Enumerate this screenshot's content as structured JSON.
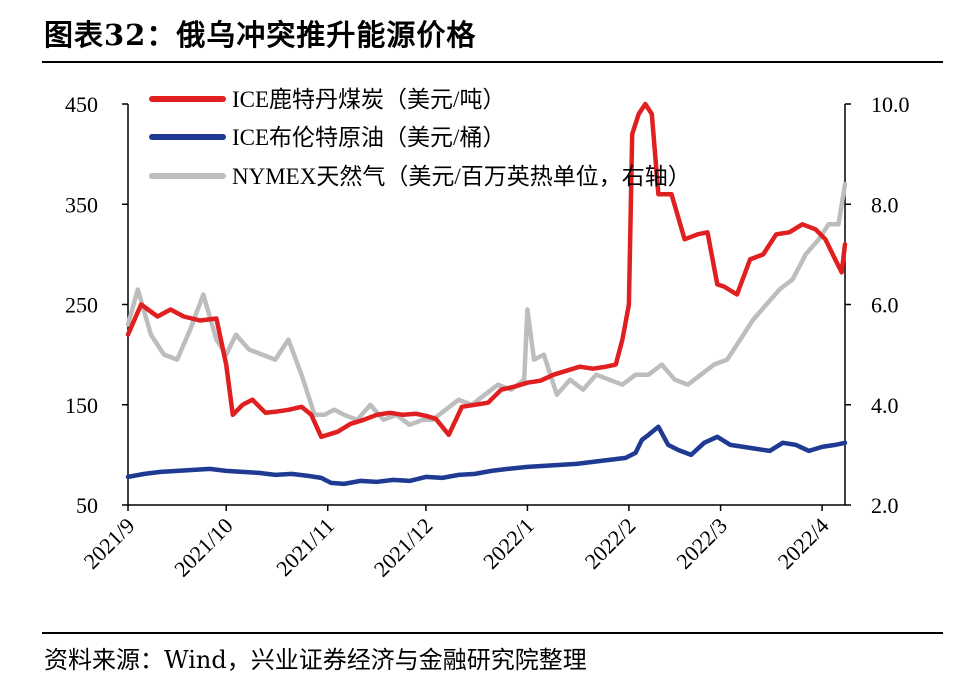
{
  "title": "图表32：俄乌冲突推升能源价格",
  "source": "资料来源：Wind，兴业证券经济与金融研究院整理",
  "chart_data": {
    "type": "line",
    "x_labels": [
      "2021/9",
      "2021/10",
      "2021/11",
      "2021/12",
      "2022/1",
      "2022/2",
      "2022/3",
      "2022/4"
    ],
    "left_axis": {
      "range": [
        50,
        450
      ],
      "ticks": [
        "50",
        "150",
        "250",
        "350",
        "450"
      ]
    },
    "right_axis": {
      "range": [
        2.0,
        10.0
      ],
      "ticks": [
        "2.0",
        "4.0",
        "6.0",
        "8.0",
        "10.0"
      ]
    },
    "series": [
      {
        "name": "ICE鹿特丹煤炭（美元/吨）",
        "color": "#e02020",
        "axis": "left",
        "x": [
          "2021-09-01",
          "2021-09-05",
          "2021-09-10",
          "2021-09-14",
          "2021-09-18",
          "2021-09-23",
          "2021-09-28",
          "2021-10-01",
          "2021-10-03",
          "2021-10-06",
          "2021-10-09",
          "2021-10-13",
          "2021-10-16",
          "2021-10-20",
          "2021-10-24",
          "2021-10-27",
          "2021-10-30",
          "2021-11-01",
          "2021-11-04",
          "2021-11-08",
          "2021-11-12",
          "2021-11-16",
          "2021-11-20",
          "2021-11-24",
          "2021-11-28",
          "2021-12-01",
          "2021-12-04",
          "2021-12-08",
          "2021-12-12",
          "2021-12-16",
          "2021-12-20",
          "2021-12-24",
          "2021-12-28",
          "2022-01-01",
          "2022-01-05",
          "2022-01-09",
          "2022-01-13",
          "2022-01-17",
          "2022-01-21",
          "2022-01-25",
          "2022-01-28",
          "2022-01-30",
          "2022-02-01",
          "2022-02-02",
          "2022-02-04",
          "2022-02-06",
          "2022-02-08",
          "2022-02-10",
          "2022-02-14",
          "2022-02-18",
          "2022-02-22",
          "2022-02-25",
          "2022-02-28",
          "2022-03-02",
          "2022-03-06",
          "2022-03-10",
          "2022-03-14",
          "2022-03-18",
          "2022-03-22",
          "2022-03-26",
          "2022-03-30",
          "2022-04-02",
          "2022-04-05",
          "2022-04-07",
          "2022-04-08"
        ],
        "values": [
          220,
          250,
          238,
          245,
          238,
          234,
          236,
          190,
          140,
          150,
          155,
          142,
          143,
          145,
          148,
          140,
          118,
          120,
          123,
          131,
          135,
          140,
          142,
          140,
          141,
          139,
          136,
          120,
          148,
          150,
          152,
          165,
          168,
          172,
          174,
          180,
          184,
          188,
          186,
          188,
          190,
          215,
          250,
          420,
          440,
          450,
          440,
          360,
          360,
          315,
          320,
          322,
          270,
          268,
          260,
          295,
          300,
          320,
          322,
          330,
          325,
          315,
          295,
          282,
          310
        ]
      },
      {
        "name": "ICE布伦特原油（美元/桶）",
        "color": "#1f3a93",
        "axis": "left",
        "x": [
          "2021-09-01",
          "2021-09-06",
          "2021-09-11",
          "2021-09-16",
          "2021-09-21",
          "2021-09-26",
          "2021-10-01",
          "2021-10-06",
          "2021-10-11",
          "2021-10-16",
          "2021-10-21",
          "2021-10-26",
          "2021-10-30",
          "2021-11-02",
          "2021-11-06",
          "2021-11-11",
          "2021-11-16",
          "2021-11-21",
          "2021-11-26",
          "2021-12-01",
          "2021-12-06",
          "2021-12-11",
          "2021-12-16",
          "2021-12-21",
          "2021-12-26",
          "2022-01-01",
          "2022-01-06",
          "2022-01-11",
          "2022-01-16",
          "2022-01-21",
          "2022-01-26",
          "2022-01-31",
          "2022-02-03",
          "2022-02-05",
          "2022-02-07",
          "2022-02-10",
          "2022-02-13",
          "2022-02-16",
          "2022-02-20",
          "2022-02-24",
          "2022-02-28",
          "2022-03-04",
          "2022-03-08",
          "2022-03-12",
          "2022-03-16",
          "2022-03-20",
          "2022-03-24",
          "2022-03-28",
          "2022-04-01",
          "2022-04-05",
          "2022-04-08"
        ],
        "values": [
          78,
          81,
          83,
          84,
          85,
          86,
          84,
          83,
          82,
          80,
          81,
          79,
          77,
          72,
          71,
          74,
          73,
          75,
          74,
          78,
          77,
          80,
          81,
          84,
          86,
          88,
          89,
          90,
          91,
          93,
          95,
          97,
          102,
          115,
          120,
          128,
          110,
          105,
          100,
          112,
          118,
          110,
          108,
          106,
          104,
          112,
          110,
          104,
          108,
          110,
          112
        ]
      },
      {
        "name": "NYMEX天然气（美元/百万英热单位，右轴）",
        "color": "#bdbdbd",
        "axis": "right",
        "x": [
          "2021-09-01",
          "2021-09-04",
          "2021-09-08",
          "2021-09-12",
          "2021-09-16",
          "2021-09-20",
          "2021-09-24",
          "2021-09-28",
          "2021-10-01",
          "2021-10-04",
          "2021-10-08",
          "2021-10-12",
          "2021-10-16",
          "2021-10-20",
          "2021-10-24",
          "2021-10-28",
          "2021-10-31",
          "2021-11-03",
          "2021-11-06",
          "2021-11-10",
          "2021-11-14",
          "2021-11-18",
          "2021-11-22",
          "2021-11-26",
          "2021-11-30",
          "2021-12-03",
          "2021-12-07",
          "2021-12-11",
          "2021-12-15",
          "2021-12-19",
          "2021-12-23",
          "2021-12-27",
          "2021-12-31",
          "2022-01-01",
          "2022-01-03",
          "2022-01-06",
          "2022-01-10",
          "2022-01-14",
          "2022-01-18",
          "2022-01-22",
          "2022-01-26",
          "2022-01-30",
          "2022-02-03",
          "2022-02-07",
          "2022-02-11",
          "2022-02-15",
          "2022-02-19",
          "2022-02-23",
          "2022-02-27",
          "2022-03-03",
          "2022-03-07",
          "2022-03-11",
          "2022-03-15",
          "2022-03-19",
          "2022-03-23",
          "2022-03-27",
          "2022-03-31",
          "2022-04-03",
          "2022-04-06",
          "2022-04-08"
        ],
        "values": [
          5.6,
          6.3,
          5.4,
          5.0,
          4.9,
          5.5,
          6.2,
          5.3,
          5.0,
          5.4,
          5.1,
          5.0,
          4.9,
          5.3,
          4.6,
          3.8,
          3.8,
          3.9,
          3.8,
          3.7,
          4.0,
          3.7,
          3.8,
          3.6,
          3.7,
          3.7,
          3.9,
          4.1,
          4.0,
          4.2,
          4.4,
          4.3,
          4.5,
          5.9,
          4.9,
          5.0,
          4.2,
          4.5,
          4.3,
          4.6,
          4.5,
          4.4,
          4.6,
          4.6,
          4.8,
          4.5,
          4.4,
          4.6,
          4.8,
          4.9,
          5.3,
          5.7,
          6.0,
          6.3,
          6.5,
          7.0,
          7.3,
          7.6,
          7.6,
          8.4
        ]
      }
    ]
  }
}
